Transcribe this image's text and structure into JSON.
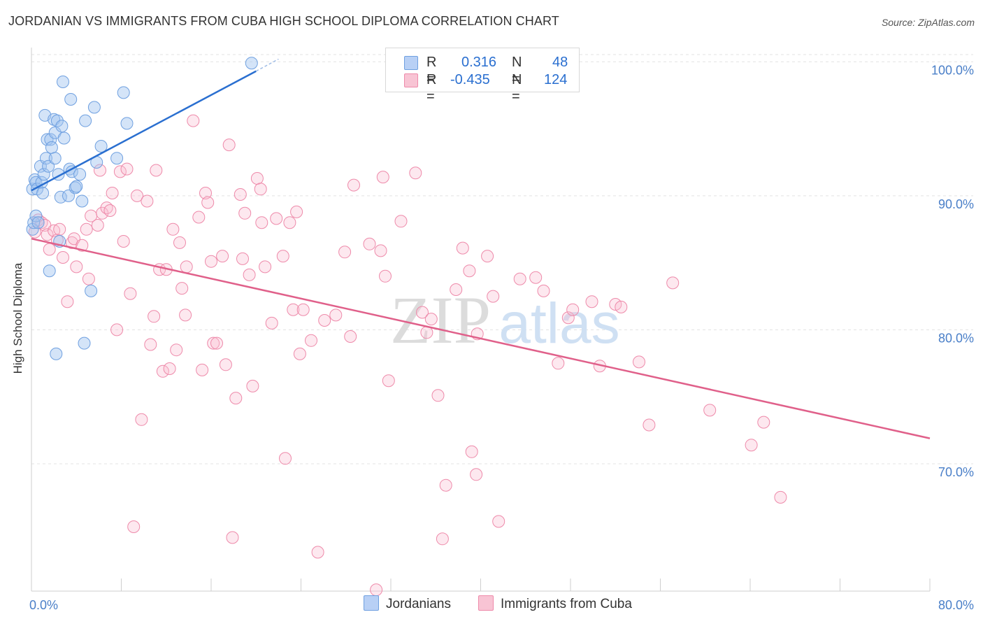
{
  "title": "JORDANIAN VS IMMIGRANTS FROM CUBA HIGH SCHOOL DIPLOMA CORRELATION CHART",
  "source": "Source: ZipAtlas.com",
  "watermark": {
    "zip": "ZIP",
    "atlas": "atlas"
  },
  "legend": {
    "r_label": "R =",
    "n_label": "N =",
    "series": [
      {
        "name": "Jordanians",
        "r": "0.316",
        "n": "48",
        "color": "#6fa0e0",
        "fill": "#b8d0f5",
        "line": "#2a6fd0"
      },
      {
        "name": "Immigrants from Cuba",
        "r": "-0.435",
        "n": "124",
        "color": "#ee8aaa",
        "fill": "#f8c4d4",
        "line": "#e0608a"
      }
    ]
  },
  "chart_data": {
    "type": "scatter",
    "title": "JORDANIAN VS IMMIGRANTS FROM CUBA HIGH SCHOOL DIPLOMA CORRELATION CHART",
    "xlabel": "",
    "ylabel": "High School Diploma",
    "xlim": [
      0,
      80
    ],
    "ylim": [
      60.5,
      102
    ],
    "x_tick_labels": [
      "0.0%",
      "80.0%"
    ],
    "y_ticks": [
      70,
      80,
      90,
      100
    ],
    "y_tick_labels": [
      "70.0%",
      "80.0%",
      "90.0%",
      "100.0%"
    ],
    "series": [
      {
        "name": "Jordanians",
        "trend": {
          "x0": 0.0,
          "y0": 90.4,
          "x1": 20.0,
          "y1": 99.3,
          "dash_to_x": 22.0,
          "dash_to_y": 100.2
        },
        "points": [
          [
            0.1,
            87.5
          ],
          [
            0.1,
            90.5
          ],
          [
            0.2,
            88.0
          ],
          [
            0.3,
            91.2
          ],
          [
            0.4,
            88.5
          ],
          [
            0.4,
            91.0
          ],
          [
            0.5,
            90.5
          ],
          [
            0.6,
            88.0
          ],
          [
            0.8,
            92.2
          ],
          [
            0.9,
            91.0
          ],
          [
            1.0,
            90.2
          ],
          [
            1.1,
            91.6
          ],
          [
            1.2,
            96.0
          ],
          [
            1.3,
            92.8
          ],
          [
            1.4,
            94.2
          ],
          [
            1.5,
            92.2
          ],
          [
            1.6,
            84.4
          ],
          [
            1.7,
            94.2
          ],
          [
            1.8,
            93.6
          ],
          [
            2.0,
            95.7
          ],
          [
            2.1,
            92.8
          ],
          [
            2.1,
            94.7
          ],
          [
            2.2,
            78.2
          ],
          [
            2.3,
            95.6
          ],
          [
            2.4,
            91.6
          ],
          [
            2.5,
            86.6
          ],
          [
            2.6,
            89.9
          ],
          [
            2.7,
            95.2
          ],
          [
            2.8,
            98.5
          ],
          [
            2.9,
            94.3
          ],
          [
            3.3,
            90.0
          ],
          [
            3.4,
            92.0
          ],
          [
            3.5,
            97.2
          ],
          [
            3.6,
            91.8
          ],
          [
            3.9,
            90.6
          ],
          [
            4.0,
            90.7
          ],
          [
            4.3,
            91.6
          ],
          [
            4.5,
            89.6
          ],
          [
            4.7,
            79.0
          ],
          [
            4.8,
            95.6
          ],
          [
            5.3,
            82.9
          ],
          [
            5.6,
            96.6
          ],
          [
            5.8,
            92.5
          ],
          [
            6.2,
            93.7
          ],
          [
            7.6,
            92.8
          ],
          [
            8.2,
            97.7
          ],
          [
            8.5,
            95.4
          ],
          [
            19.6,
            99.9
          ]
        ]
      },
      {
        "name": "Immigrants from Cuba",
        "trend": {
          "x0": 0.0,
          "y0": 86.8,
          "x1": 80.0,
          "y1": 71.9
        },
        "points": [
          [
            0.3,
            87.3
          ],
          [
            0.6,
            88.2
          ],
          [
            0.9,
            88.0
          ],
          [
            1.2,
            87.8
          ],
          [
            1.4,
            87.1
          ],
          [
            1.6,
            86.0
          ],
          [
            2.0,
            87.4
          ],
          [
            2.3,
            86.7
          ],
          [
            2.5,
            87.5
          ],
          [
            2.8,
            85.4
          ],
          [
            3.2,
            82.1
          ],
          [
            3.6,
            86.5
          ],
          [
            3.8,
            86.8
          ],
          [
            4.0,
            84.7
          ],
          [
            4.5,
            86.3
          ],
          [
            4.9,
            87.5
          ],
          [
            5.1,
            83.8
          ],
          [
            5.3,
            88.5
          ],
          [
            5.9,
            87.8
          ],
          [
            6.1,
            91.9
          ],
          [
            6.3,
            88.7
          ],
          [
            6.7,
            89.1
          ],
          [
            7.0,
            88.9
          ],
          [
            7.2,
            90.2
          ],
          [
            7.6,
            80.0
          ],
          [
            7.9,
            91.8
          ],
          [
            8.2,
            86.6
          ],
          [
            8.5,
            92.0
          ],
          [
            8.8,
            82.7
          ],
          [
            9.1,
            65.3
          ],
          [
            9.4,
            90.0
          ],
          [
            9.8,
            73.3
          ],
          [
            10.3,
            89.6
          ],
          [
            10.6,
            78.9
          ],
          [
            10.9,
            81.0
          ],
          [
            11.1,
            91.9
          ],
          [
            11.4,
            84.5
          ],
          [
            11.7,
            76.9
          ],
          [
            12.0,
            84.5
          ],
          [
            12.3,
            77.1
          ],
          [
            12.6,
            87.5
          ],
          [
            12.9,
            78.5
          ],
          [
            13.2,
            86.5
          ],
          [
            13.4,
            83.1
          ],
          [
            13.7,
            81.1
          ],
          [
            13.8,
            84.7
          ],
          [
            14.4,
            95.6
          ],
          [
            14.9,
            88.4
          ],
          [
            15.2,
            77.0
          ],
          [
            15.5,
            90.2
          ],
          [
            15.7,
            89.5
          ],
          [
            16.0,
            85.1
          ],
          [
            16.2,
            79.0
          ],
          [
            16.5,
            79.0
          ],
          [
            17.0,
            85.5
          ],
          [
            17.3,
            77.4
          ],
          [
            17.6,
            93.8
          ],
          [
            17.9,
            64.5
          ],
          [
            18.2,
            74.9
          ],
          [
            18.6,
            90.1
          ],
          [
            18.8,
            85.3
          ],
          [
            19.0,
            88.7
          ],
          [
            19.4,
            84.1
          ],
          [
            19.7,
            75.8
          ],
          [
            20.1,
            91.3
          ],
          [
            20.4,
            90.5
          ],
          [
            20.5,
            88.0
          ],
          [
            20.8,
            84.7
          ],
          [
            21.4,
            80.5
          ],
          [
            21.8,
            88.3
          ],
          [
            22.4,
            85.5
          ],
          [
            22.6,
            70.4
          ],
          [
            23.0,
            88.0
          ],
          [
            23.3,
            81.5
          ],
          [
            23.6,
            88.8
          ],
          [
            23.9,
            78.2
          ],
          [
            24.2,
            81.5
          ],
          [
            24.9,
            79.2
          ],
          [
            25.5,
            63.4
          ],
          [
            26.1,
            80.7
          ],
          [
            27.1,
            81.1
          ],
          [
            27.9,
            85.8
          ],
          [
            28.4,
            79.5
          ],
          [
            28.7,
            90.8
          ],
          [
            30.1,
            86.4
          ],
          [
            30.7,
            60.6
          ],
          [
            31.1,
            85.9
          ],
          [
            31.3,
            91.4
          ],
          [
            31.5,
            84.0
          ],
          [
            31.8,
            76.2
          ],
          [
            32.9,
            88.1
          ],
          [
            34.2,
            91.7
          ],
          [
            34.8,
            81.3
          ],
          [
            35.2,
            79.8
          ],
          [
            35.6,
            80.8
          ],
          [
            36.2,
            75.1
          ],
          [
            36.6,
            64.4
          ],
          [
            36.9,
            68.4
          ],
          [
            37.8,
            83.0
          ],
          [
            38.4,
            86.1
          ],
          [
            39.0,
            84.4
          ],
          [
            39.2,
            70.9
          ],
          [
            39.6,
            69.2
          ],
          [
            39.7,
            79.7
          ],
          [
            40.6,
            85.5
          ],
          [
            41.1,
            82.5
          ],
          [
            41.6,
            65.7
          ],
          [
            43.5,
            83.8
          ],
          [
            44.9,
            83.9
          ],
          [
            45.6,
            82.9
          ],
          [
            46.9,
            77.5
          ],
          [
            47.8,
            80.9
          ],
          [
            48.2,
            81.5
          ],
          [
            49.9,
            82.1
          ],
          [
            50.6,
            77.3
          ],
          [
            52.0,
            81.9
          ],
          [
            52.5,
            81.7
          ],
          [
            54.1,
            77.6
          ],
          [
            55.0,
            72.9
          ],
          [
            57.1,
            83.5
          ],
          [
            60.4,
            74.0
          ],
          [
            64.1,
            71.4
          ],
          [
            65.2,
            73.1
          ],
          [
            66.7,
            67.5
          ]
        ]
      }
    ]
  }
}
